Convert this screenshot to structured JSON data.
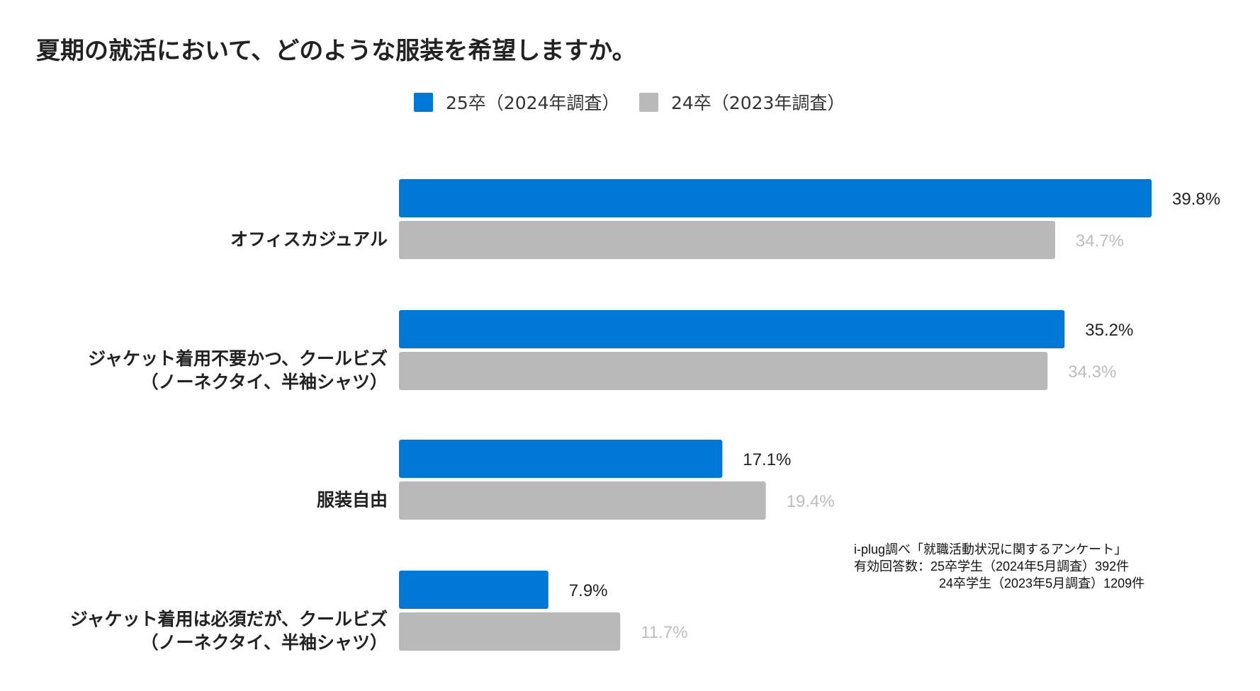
{
  "chart_data": {
    "type": "bar",
    "orientation": "horizontal",
    "title": "夏期の就活において、どのような服装を希望しますか。",
    "categories": [
      [
        "オフィスカジュアル"
      ],
      [
        "ジャケット着用不要かつ、クールビズ",
        "（ノーネクタイ、半袖シャツ）"
      ],
      [
        "服装自由"
      ],
      [
        "ジャケット着用は必須だが、クールビズ",
        "（ノーネクタイ、半袖シャツ）"
      ]
    ],
    "series": [
      {
        "name": "25卒（2024年調査）",
        "color": "#0078d7",
        "label_color": "#222222",
        "values": [
          39.8,
          35.2,
          17.1,
          7.9
        ]
      },
      {
        "name": "24卒（2023年調査）",
        "color": "#b9b9b9",
        "label_color": "#bdbdbd",
        "values": [
          34.7,
          34.3,
          19.4,
          11.7
        ]
      }
    ],
    "unit": "%",
    "xlim": [
      0,
      39.8
    ],
    "grid": false,
    "legend_position": "top-center"
  },
  "note": {
    "line1": "i-plug調べ「就職活動状況に関するアンケート」",
    "line2": "有効回答数：25卒学生（2024年5月調査）392件",
    "line3": "24卒学生（2023年5月調査）1209件"
  }
}
